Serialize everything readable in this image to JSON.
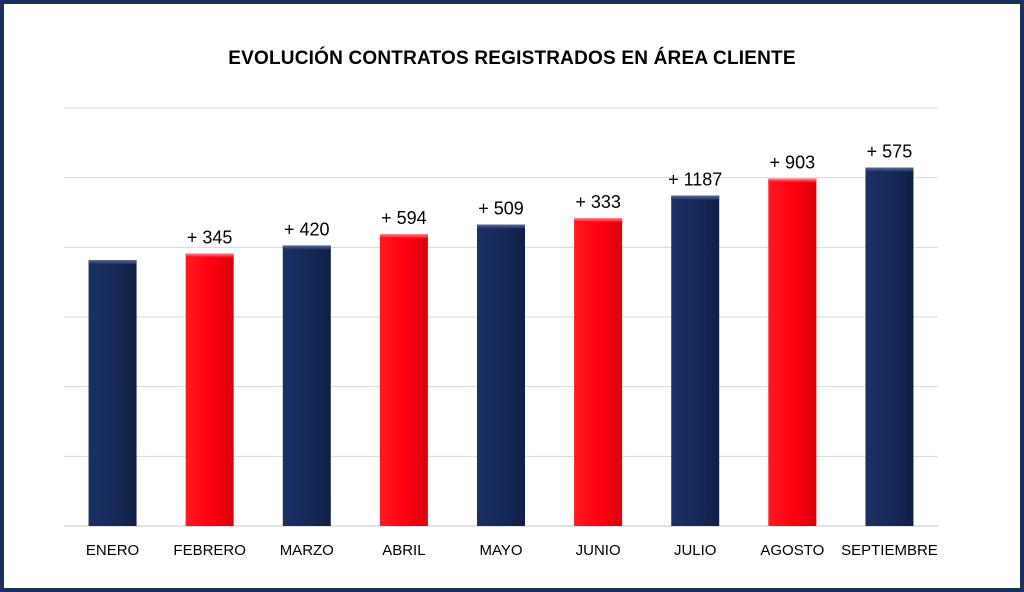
{
  "chart_data": {
    "type": "bar",
    "title": "EVOLUCIÓN CONTRATOS REGISTRADOS EN ÁREA CLIENTE",
    "xlabel": "",
    "ylabel": "",
    "categories": [
      "ENERO",
      "FEBRERO",
      "MARZO",
      "ABRIL",
      "MAYO",
      "JUNIO",
      "JULIO",
      "AGOSTO",
      "SEPTIEMBRE"
    ],
    "values": [
      44000,
      44345,
      44765,
      45359,
      45868,
      46201,
      47388,
      48291,
      48866
    ],
    "data_labels": [
      "",
      "+ 345",
      "+ 420",
      "+ 594",
      "+ 509",
      "+ 333",
      "+ 1187",
      "+ 903",
      "+ 575"
    ],
    "ylim": [
      30000,
      52000
    ],
    "grid": true,
    "legend": "none",
    "colors": {
      "primary": "#172b5a",
      "highlight": "#ff0011",
      "grid": "#d9d9d9",
      "frame": "#1c2f5b"
    },
    "bar_color_pattern": [
      "primary",
      "highlight",
      "primary",
      "highlight",
      "primary",
      "highlight",
      "primary",
      "highlight",
      "primary"
    ]
  }
}
